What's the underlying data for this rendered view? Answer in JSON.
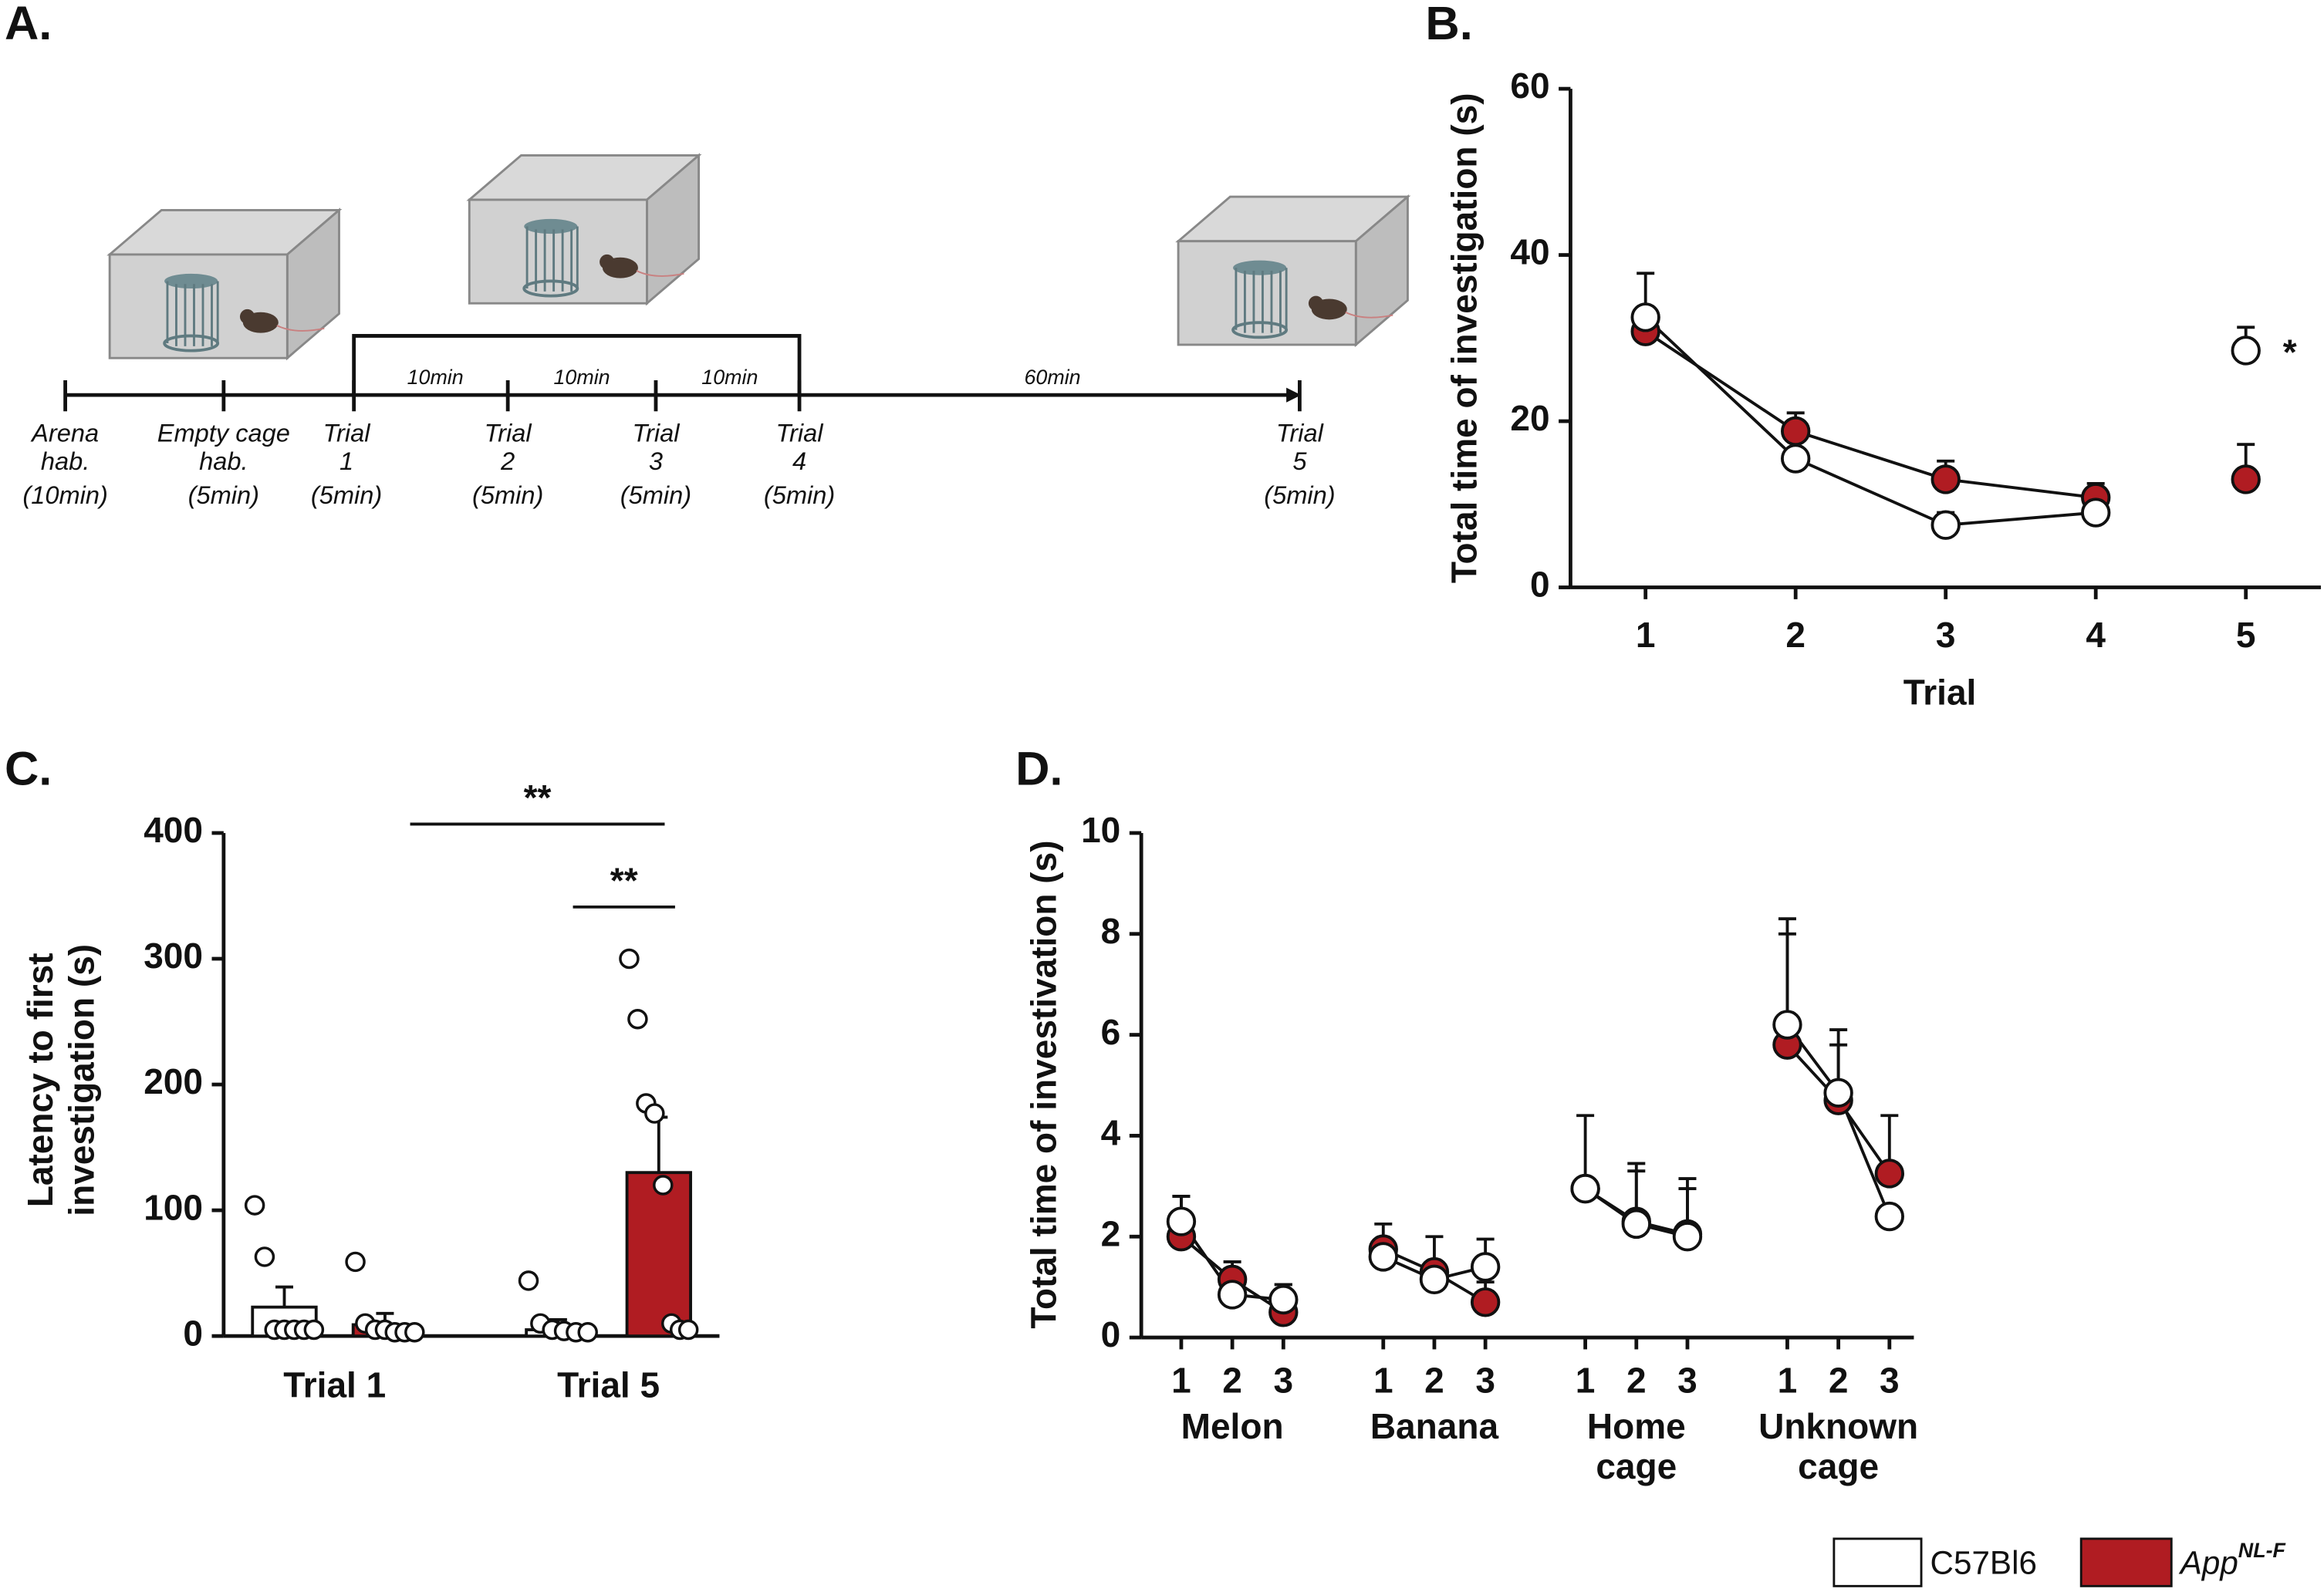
{
  "diagram": {
    "label": "A.",
    "steps": [
      {
        "lines": [
          "Arena",
          "hab.",
          "(10min)"
        ]
      },
      {
        "lines": [
          "Empty cage",
          "hab.",
          "(5min)"
        ]
      },
      {
        "lines": [
          "Trial",
          "1",
          "(5min)"
        ]
      },
      {
        "lines": [
          "Trial",
          "2",
          "(5min)"
        ]
      },
      {
        "lines": [
          "Trial",
          "3",
          "(5min)"
        ]
      },
      {
        "lines": [
          "Trial",
          "4",
          "(5min)"
        ]
      },
      {
        "lines": [
          "Trial",
          "5",
          "(5min)"
        ]
      }
    ],
    "intervals": [
      "10min",
      "10min",
      "10min",
      "60min"
    ]
  },
  "chart_data": [
    {
      "type": "line",
      "label": "B.",
      "xlabel": "Trial",
      "ylabel": "Total time of investigation (s)",
      "x": [
        1,
        2,
        3,
        4,
        5
      ],
      "xlim": [
        0.5,
        5.5
      ],
      "xticks": [
        1,
        2,
        3,
        4,
        5
      ],
      "ylim": [
        0,
        60
      ],
      "yticks": [
        0,
        20,
        40,
        60
      ],
      "series": [
        {
          "name": "C57Bl6",
          "color": "#ffffff",
          "values": [
            32.5,
            15.5,
            7.5,
            9,
            null
          ],
          "errors": [
            5.3,
            null,
            1.5,
            null,
            null
          ]
        },
        {
          "name": "App",
          "name_sup": "NL-F",
          "color": "#b01c22",
          "values": [
            30.8,
            18.8,
            13,
            10.8,
            null
          ],
          "errors": [
            null,
            2.2,
            2.2,
            1.7,
            null
          ]
        },
        {
          "color": "#ffffff",
          "values": [
            null,
            null,
            null,
            null,
            28.5
          ],
          "errors": [
            null,
            null,
            null,
            null,
            2.8
          ]
        },
        {
          "color": "#b01c22",
          "values": [
            null,
            null,
            null,
            null,
            13
          ],
          "errors": [
            null,
            null,
            null,
            null,
            4.2
          ]
        }
      ],
      "annotations": [
        "*"
      ]
    },
    {
      "type": "bar",
      "label": "C.",
      "ylabel": [
        "Latency to first",
        "investigation (s)"
      ],
      "categories": [
        "Trial 1",
        "Trial 5"
      ],
      "ylim": [
        0,
        400
      ],
      "yticks": [
        0,
        100,
        200,
        300,
        400
      ],
      "series": [
        {
          "color": "#ffffff",
          "values": [
            23,
            5
          ],
          "errors": [
            16,
            8
          ],
          "points": [
            [
              104,
              63,
              5,
              5,
              5,
              5,
              5
            ],
            [
              44,
              10,
              5,
              4,
              3,
              3
            ]
          ]
        },
        {
          "color": "#b01c22",
          "values": [
            9,
            130
          ],
          "errors": [
            9,
            44
          ],
          "points": [
            [
              59,
              10,
              5,
              5,
              3,
              3,
              3
            ],
            [
              300,
              252,
              185,
              177,
              120,
              10,
              5,
              5
            ]
          ]
        }
      ],
      "significance": [
        "**",
        "**"
      ]
    },
    {
      "type": "line",
      "label": "D.",
      "ylabel": "Total time of investivation (s)",
      "groups": [
        "Melon",
        "Banana",
        "Home cage",
        "Unknown cage"
      ],
      "categories": [
        "1",
        "2",
        "3"
      ],
      "ylim": [
        0,
        10
      ],
      "yticks": [
        0,
        2,
        4,
        6,
        8,
        10
      ],
      "series": [
        {
          "color": "#ffffff",
          "values": [
            [
              2.3,
              0.85,
              0.75
            ],
            [
              1.6,
              1.15,
              1.4
            ],
            [
              2.95,
              2.25,
              2.0
            ],
            [
              6.2,
              4.85,
              2.4
            ]
          ],
          "errors": [
            [
              0.5,
              null,
              0.3
            ],
            [
              null,
              0.85,
              0.55
            ],
            [
              1.45,
              1.2,
              1.15
            ],
            [
              2.1,
              1.25,
              null
            ]
          ]
        },
        {
          "color": "#b01c22",
          "values": [
            [
              2.0,
              1.15,
              0.5
            ],
            [
              1.75,
              1.3,
              0.7
            ],
            [
              2.95,
              2.3,
              2.05
            ],
            [
              5.8,
              4.7,
              3.25
            ]
          ],
          "errors": [
            [
              0.8,
              0.35,
              0.55
            ],
            [
              0.5,
              0.2,
              0.4
            ],
            [
              null,
              1.0,
              0.9
            ],
            [
              2.2,
              1.1,
              1.15
            ]
          ]
        }
      ]
    }
  ]
}
